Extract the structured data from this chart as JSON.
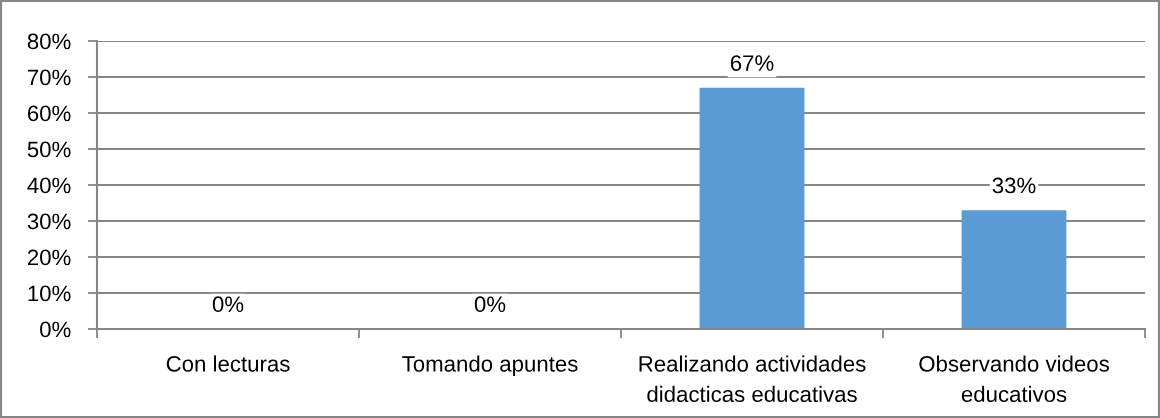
{
  "chart_data": {
    "type": "bar",
    "categories": [
      "Con lecturas",
      "Tomando apuntes",
      "Realizando actividades\ndidacticas educativas",
      "Observando videos\neducativos"
    ],
    "values": [
      0,
      0,
      67,
      33
    ],
    "value_labels": [
      "0%",
      "0%",
      "67%",
      "33%"
    ],
    "color": "#5b9bd5",
    "ylim": [
      0,
      80
    ],
    "yticks": [
      {
        "value": 0,
        "label": "0%"
      },
      {
        "value": 10,
        "label": "10%"
      },
      {
        "value": 20,
        "label": "20%"
      },
      {
        "value": 30,
        "label": "30%"
      },
      {
        "value": 40,
        "label": "40%"
      },
      {
        "value": 50,
        "label": "50%"
      },
      {
        "value": 60,
        "label": "60%"
      },
      {
        "value": 70,
        "label": "70%"
      },
      {
        "value": 80,
        "label": "80%"
      }
    ],
    "grid": "y"
  }
}
